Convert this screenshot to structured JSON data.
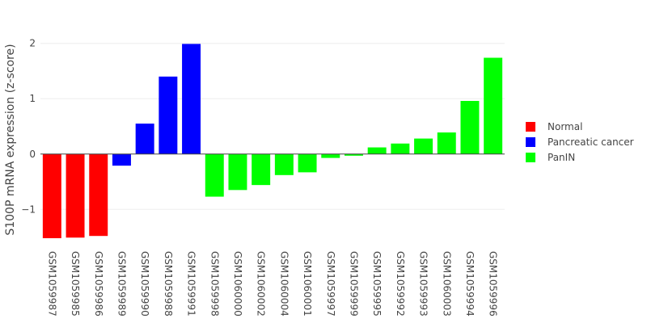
{
  "chart_data": {
    "type": "bar",
    "ylabel": "S100P  mRNA expression (z-score)",
    "ylim": [
      -1.55,
      2.2
    ],
    "yticks": [
      -1,
      0,
      1,
      2
    ],
    "ytick_labels": [
      "−1",
      "0",
      "1",
      "2"
    ],
    "grid": true,
    "legend_position": "right",
    "categories": [
      "GSM1059987",
      "GSM1059985",
      "GSM1059986",
      "GSM1059989",
      "GSM1059990",
      "GSM1059988",
      "GSM1059991",
      "GSM1059998",
      "GSM1060000",
      "GSM1060002",
      "GSM1060004",
      "GSM1060001",
      "GSM1059997",
      "GSM1059999",
      "GSM1059995",
      "GSM1059992",
      "GSM1059993",
      "GSM1060003",
      "GSM1059994",
      "GSM1059996"
    ],
    "values": [
      -1.52,
      -1.51,
      -1.48,
      -0.21,
      0.55,
      1.4,
      1.99,
      -0.77,
      -0.65,
      -0.56,
      -0.38,
      -0.33,
      -0.07,
      -0.03,
      0.12,
      0.19,
      0.28,
      0.39,
      0.96,
      1.74
    ],
    "groups": [
      "Normal",
      "Normal",
      "Normal",
      "Pancreatic cancer",
      "Pancreatic cancer",
      "Pancreatic cancer",
      "Pancreatic cancer",
      "PanIN",
      "PanIN",
      "PanIN",
      "PanIN",
      "PanIN",
      "PanIN",
      "PanIN",
      "PanIN",
      "PanIN",
      "PanIN",
      "PanIN",
      "PanIN",
      "PanIN"
    ],
    "series": [
      {
        "name": "Normal",
        "color": "#ff0000"
      },
      {
        "name": "Pancreatic cancer",
        "color": "#0000ff"
      },
      {
        "name": "PanIN",
        "color": "#00ff00"
      }
    ]
  }
}
